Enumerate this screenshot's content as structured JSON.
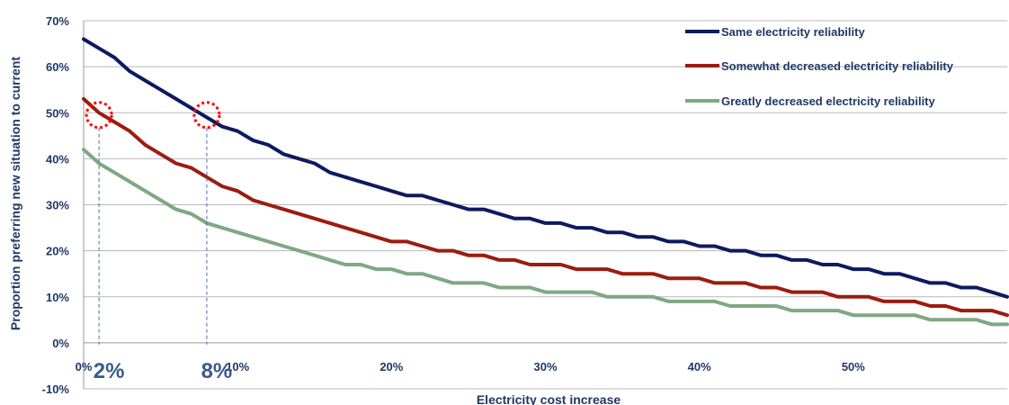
{
  "chart_data": {
    "type": "line",
    "ylabel": "Proportion preferring new situation to current",
    "xlabel": "Electricity cost increase",
    "ylim": [
      -10,
      70
    ],
    "yticks": [
      70,
      60,
      50,
      40,
      30,
      20,
      10,
      0,
      -10
    ],
    "ytick_labels": [
      "70%",
      "60%",
      "50%",
      "40%",
      "30%",
      "20%",
      "10%",
      "0%",
      "-10%"
    ],
    "xlim": [
      0,
      60
    ],
    "xticks": [
      0,
      10,
      20,
      30,
      40,
      50
    ],
    "xtick_labels": [
      "0%",
      "10%",
      "20%",
      "30%",
      "40%",
      "50%"
    ],
    "grid": true,
    "legend_position": "top-right",
    "series": [
      {
        "name": "Same electricity reliability",
        "color": "#0d1a5e",
        "x": [
          0,
          1,
          2,
          3,
          4,
          5,
          6,
          7,
          8,
          9,
          10,
          11,
          12,
          13,
          14,
          15,
          16,
          17,
          18,
          19,
          20,
          21,
          22,
          23,
          24,
          25,
          26,
          27,
          28,
          29,
          30,
          31,
          32,
          33,
          34,
          35,
          36,
          37,
          38,
          39,
          40,
          41,
          42,
          43,
          44,
          45,
          46,
          47,
          48,
          49,
          50,
          51,
          52,
          53,
          54,
          55,
          56,
          57,
          58,
          59,
          60
        ],
        "values": [
          66,
          64,
          62,
          59,
          57,
          55,
          53,
          51,
          49,
          47,
          46,
          44,
          43,
          41,
          40,
          39,
          37,
          36,
          35,
          34,
          33,
          32,
          32,
          31,
          30,
          29,
          29,
          28,
          27,
          27,
          26,
          26,
          25,
          25,
          24,
          24,
          23,
          23,
          22,
          22,
          21,
          21,
          20,
          20,
          19,
          19,
          18,
          18,
          17,
          17,
          16,
          16,
          15,
          15,
          14,
          13,
          13,
          12,
          12,
          11,
          10
        ]
      },
      {
        "name": "Somewhat decreased electricity reliability",
        "color": "#9b1c10",
        "x": [
          0,
          1,
          2,
          3,
          4,
          5,
          6,
          7,
          8,
          9,
          10,
          11,
          12,
          13,
          14,
          15,
          16,
          17,
          18,
          19,
          20,
          21,
          22,
          23,
          24,
          25,
          26,
          27,
          28,
          29,
          30,
          31,
          32,
          33,
          34,
          35,
          36,
          37,
          38,
          39,
          40,
          41,
          42,
          43,
          44,
          45,
          46,
          47,
          48,
          49,
          50,
          51,
          52,
          53,
          54,
          55,
          56,
          57,
          58,
          59,
          60
        ],
        "values": [
          53,
          50,
          48,
          46,
          43,
          41,
          39,
          38,
          36,
          34,
          33,
          31,
          30,
          29,
          28,
          27,
          26,
          25,
          24,
          23,
          22,
          22,
          21,
          20,
          20,
          19,
          19,
          18,
          18,
          17,
          17,
          17,
          16,
          16,
          16,
          15,
          15,
          15,
          14,
          14,
          14,
          13,
          13,
          13,
          12,
          12,
          11,
          11,
          11,
          10,
          10,
          10,
          9,
          9,
          9,
          8,
          8,
          7,
          7,
          7,
          6
        ]
      },
      {
        "name": "Greatly decreased electricity reliability",
        "color": "#7fa882",
        "x": [
          0,
          1,
          2,
          3,
          4,
          5,
          6,
          7,
          8,
          9,
          10,
          11,
          12,
          13,
          14,
          15,
          16,
          17,
          18,
          19,
          20,
          21,
          22,
          23,
          24,
          25,
          26,
          27,
          28,
          29,
          30,
          31,
          32,
          33,
          34,
          35,
          36,
          37,
          38,
          39,
          40,
          41,
          42,
          43,
          44,
          45,
          46,
          47,
          48,
          49,
          50,
          51,
          52,
          53,
          54,
          55,
          56,
          57,
          58,
          59,
          60
        ],
        "values": [
          42,
          39,
          37,
          35,
          33,
          31,
          29,
          28,
          26,
          25,
          24,
          23,
          22,
          21,
          20,
          19,
          18,
          17,
          17,
          16,
          16,
          15,
          15,
          14,
          13,
          13,
          13,
          12,
          12,
          12,
          11,
          11,
          11,
          11,
          10,
          10,
          10,
          10,
          9,
          9,
          9,
          9,
          8,
          8,
          8,
          8,
          7,
          7,
          7,
          7,
          6,
          6,
          6,
          6,
          6,
          5,
          5,
          5,
          5,
          4,
          4
        ]
      }
    ],
    "annotations": [
      {
        "label": "2%",
        "x": 1,
        "y": 49.5,
        "color": "#ff0000"
      },
      {
        "label": "8%",
        "x": 8,
        "y": 49.5,
        "color": "#ff0000"
      }
    ]
  }
}
